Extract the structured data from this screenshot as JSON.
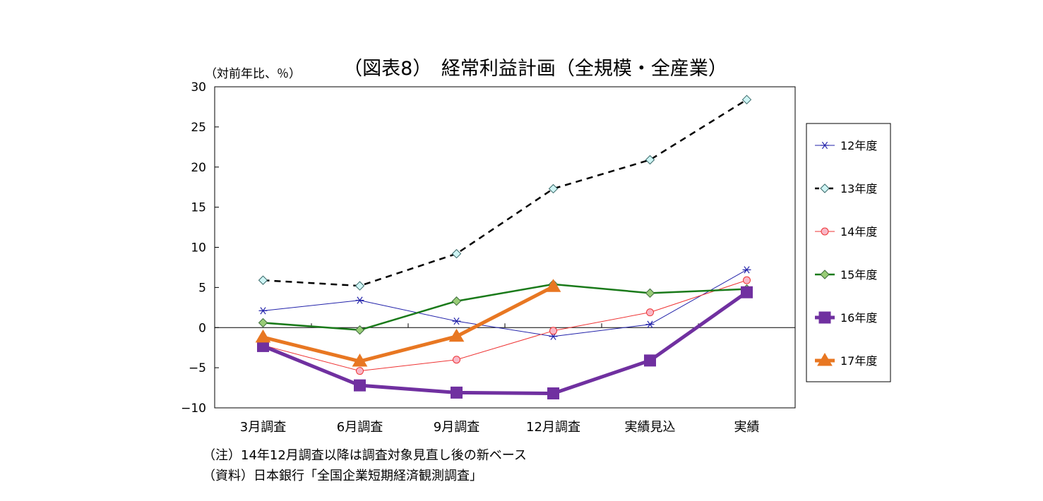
{
  "chart_data": {
    "type": "line",
    "title": "（図表8）　経常利益計画（全規模・全産業）",
    "unit_label": "（対前年比、％）",
    "ylim": [
      -10,
      30
    ],
    "yticks": [
      {
        "value": 30,
        "label": "30"
      },
      {
        "value": 25,
        "label": "25"
      },
      {
        "value": 20,
        "label": "20"
      },
      {
        "value": 15,
        "label": "15"
      },
      {
        "value": 10,
        "label": "10"
      },
      {
        "value": 5,
        "label": "5"
      },
      {
        "value": 0,
        "label": "0"
      },
      {
        "value": -5,
        "label": "−5"
      },
      {
        "value": -10,
        "label": "−10"
      }
    ],
    "categories": [
      "3月調査",
      "6月調査",
      "9月調査",
      "12月調査",
      "実績見込",
      "実績"
    ],
    "grid": false,
    "legend_position": "right",
    "series": [
      {
        "name": "12年度",
        "color": "#2222aa",
        "marker": "asterisk",
        "dash": "solid",
        "width": 1,
        "values": [
          2.1,
          3.4,
          0.8,
          -1.1,
          0.4,
          7.2
        ]
      },
      {
        "name": "13年度",
        "color": "#000000",
        "marker": "diamond-open",
        "marker_fill": "#cff5f5",
        "dash": "dashed",
        "width": 2.5,
        "values": [
          5.9,
          5.2,
          9.2,
          17.3,
          20.9,
          28.4
        ]
      },
      {
        "name": "14年度",
        "color": "#ee3333",
        "marker": "circle",
        "marker_fill": "#f8b8c8",
        "dash": "solid",
        "width": 1,
        "values": [
          -2.2,
          -5.4,
          -4.0,
          -0.4,
          1.9,
          5.9
        ]
      },
      {
        "name": "15年度",
        "color": "#1a7a1a",
        "marker": "diamond",
        "marker_fill": "#99cc77",
        "dash": "solid",
        "width": 2.5,
        "values": [
          0.6,
          -0.3,
          3.3,
          5.4,
          4.3,
          4.8
        ]
      },
      {
        "name": "16年度",
        "color": "#7030a0",
        "marker": "square",
        "marker_fill": "#7030a0",
        "dash": "solid",
        "width": 5,
        "values": [
          -2.3,
          -7.2,
          -8.1,
          -8.2,
          -4.1,
          4.4
        ]
      },
      {
        "name": "17年度",
        "color": "#e87722",
        "marker": "triangle",
        "marker_fill": "#e87722",
        "dash": "solid",
        "width": 5,
        "values": [
          -1.2,
          -4.2,
          -1.1,
          5.1,
          null,
          null
        ]
      }
    ]
  },
  "notes": {
    "note1": "（注）14年12月調査以降は調査対象見直し後の新ベース",
    "note2": "（資料）日本銀行「全国企業短期経済観測調査」"
  }
}
